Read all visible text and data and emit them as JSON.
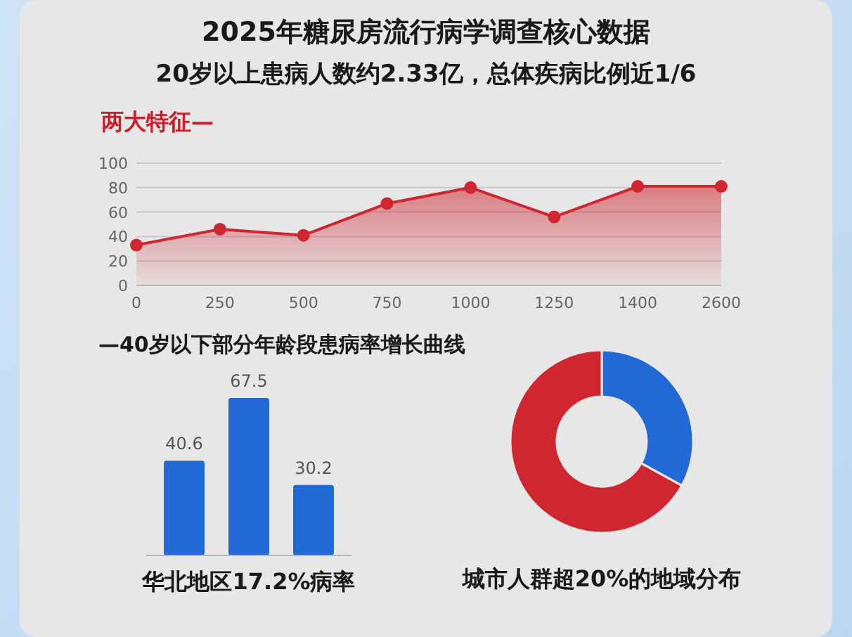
{
  "chart_data": [
    {
      "type": "line",
      "title": "2025年糖尿房流行病学调查核心数据",
      "subtitle": "20岁以上患病人数约2.33亿，总体疾病比例近1/6",
      "annotations": [
        "两大特征—"
      ],
      "categories": [
        "0",
        "250",
        "500",
        "750",
        "1000",
        "1250",
        "1400",
        "2600"
      ],
      "series": [
        {
          "type": "area",
          "color": "#d0262f",
          "values": [
            33,
            46,
            41,
            67,
            80,
            56,
            81,
            81
          ]
        }
      ],
      "ylim": [
        0,
        100
      ],
      "yticks": [
        0,
        20,
        40,
        60,
        80,
        100
      ],
      "grid": "y",
      "marker": "circle",
      "line_style": "solid"
    },
    {
      "type": "bar",
      "title": "—40岁以下部分年龄段患病率增长曲线",
      "xlabel": "华北地区17.2%病率",
      "categories": [
        null,
        null,
        null
      ],
      "values": [
        40.6,
        67.5,
        30.2
      ],
      "color": "#2369d6",
      "data_labels": true
    },
    {
      "type": "donut",
      "xlabel": "城市人群超20%的地域分布",
      "categories": [
        null,
        null
      ],
      "values": [
        33,
        67
      ],
      "colors": [
        "#2369d6",
        "#d0262f"
      ]
    }
  ]
}
